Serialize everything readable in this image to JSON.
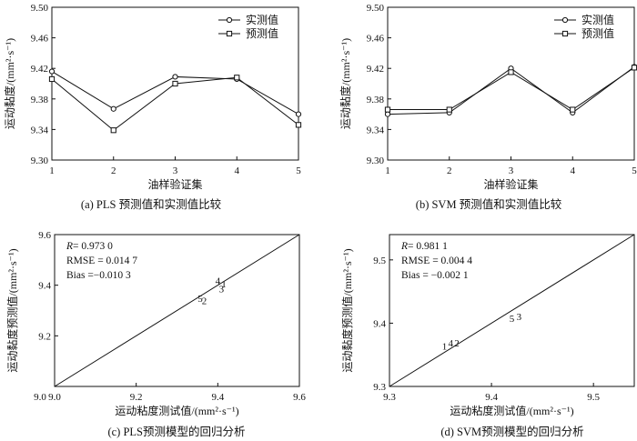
{
  "chart_data": [
    {
      "type": "line",
      "caption": "(a) PLS 预测值和实测值比较",
      "xlabel": "油样验证集",
      "ylabel": "运动黏度/(mm²·s⁻¹)",
      "x": [
        1,
        2,
        3,
        4,
        5
      ],
      "xlim": [
        1,
        5
      ],
      "ylim": [
        9.3,
        9.5
      ],
      "xticks": [
        "1",
        "2",
        "3",
        "4",
        "5"
      ],
      "yticks": [
        "9.30",
        "9.34",
        "9.38",
        "9.42",
        "9.46",
        "9.50"
      ],
      "legend_position": "top-right",
      "series": [
        {
          "name": "实测值",
          "marker": "circle",
          "values": [
            9.416,
            9.367,
            9.409,
            9.406,
            9.36
          ]
        },
        {
          "name": "预测值",
          "marker": "square",
          "values": [
            9.406,
            9.339,
            9.4,
            9.408,
            9.346
          ]
        }
      ]
    },
    {
      "type": "line",
      "caption": "(b) SVM 预测值和实测值比较",
      "xlabel": "油样验证集",
      "ylabel": "运动黏度/(mm²·s⁻¹)",
      "x": [
        1,
        2,
        3,
        4,
        5
      ],
      "xlim": [
        1,
        5
      ],
      "ylim": [
        9.3,
        9.5
      ],
      "xticks": [
        "1",
        "2",
        "3",
        "4",
        "5"
      ],
      "yticks": [
        "9.30",
        "9.34",
        "9.38",
        "9.42",
        "9.46",
        "9.50"
      ],
      "legend_position": "top-right",
      "series": [
        {
          "name": "实测值",
          "marker": "circle",
          "values": [
            9.36,
            9.362,
            9.42,
            9.362,
            9.422
          ]
        },
        {
          "name": "预测值",
          "marker": "square",
          "values": [
            9.366,
            9.366,
            9.415,
            9.366,
            9.421
          ]
        }
      ]
    },
    {
      "type": "scatter",
      "caption": "(c) PLS预测模型的回归分析",
      "xlabel": "运动粘度测试值/(mm²·s⁻¹)",
      "ylabel": "运动黏度预测值/(mm²·s⁻¹)",
      "xlim": [
        9.0,
        9.6
      ],
      "ylim": [
        9.0,
        9.6
      ],
      "xticks": [
        "9.0",
        "9.2",
        "9.4",
        "9.6"
      ],
      "yticks": [
        "9.2",
        "9.4",
        "9.6"
      ],
      "y_origin_label": "9.0",
      "stats": {
        "r_label": "R",
        "r": "= 0.973 0",
        "rmse": "RMSE = 0.014 7",
        "bias": "Bias =−0.010 3"
      },
      "points": [
        {
          "label": "1",
          "x": 9.415,
          "y": 9.406
        },
        {
          "label": "2",
          "x": 9.367,
          "y": 9.339
        },
        {
          "label": "3",
          "x": 9.409,
          "y": 9.386
        },
        {
          "label": "4",
          "x": 9.4,
          "y": 9.418
        },
        {
          "label": "5",
          "x": 9.357,
          "y": 9.348
        }
      ],
      "reference_line": "y = x"
    },
    {
      "type": "scatter",
      "caption": "(d) SVM预测模型的回归分析",
      "xlabel": "运动粘度测试值/(mm²·s⁻¹)",
      "ylabel": "运动黏度预测值/(mm²·s⁻¹)",
      "xlim": [
        9.3,
        9.54
      ],
      "ylim": [
        9.3,
        9.54
      ],
      "xticks": [
        "9.3",
        "9.4",
        "9.5"
      ],
      "yticks": [
        "9.3",
        "9.4",
        "9.5"
      ],
      "stats": {
        "r_label": "R",
        "r": "= 0.981 1",
        "rmse": "RMSE = 0.004 4",
        "bias": "Bias = −0.002 1"
      },
      "points": [
        {
          "label": "1",
          "x": 9.354,
          "y": 9.364
        },
        {
          "label": "4",
          "x": 9.36,
          "y": 9.369
        },
        {
          "label": "2",
          "x": 9.366,
          "y": 9.369
        },
        {
          "label": "5",
          "x": 9.42,
          "y": 9.408
        },
        {
          "label": "3",
          "x": 9.427,
          "y": 9.411
        }
      ],
      "reference_line": "y = x"
    }
  ]
}
